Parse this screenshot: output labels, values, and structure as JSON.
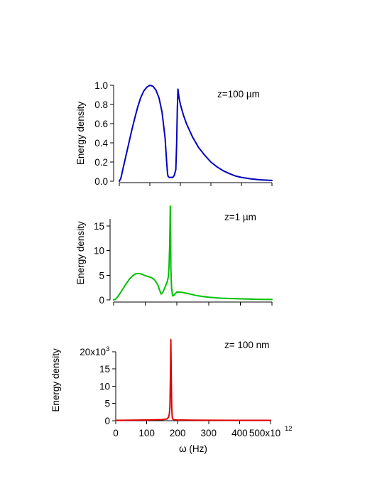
{
  "chart_data": [
    {
      "type": "line",
      "annotation": "z=100 µm",
      "ylabel": "Energy density",
      "xlabel": "",
      "xlim": [
        0,
        500
      ],
      "ylim": [
        0,
        1.0
      ],
      "yticks": [
        0.0,
        0.2,
        0.4,
        0.6,
        0.8,
        1.0
      ],
      "ytick_labels": [
        "0.0",
        "0.2",
        "0.4",
        "0.6",
        "0.8",
        "1.0"
      ],
      "xticks": [
        0,
        100,
        200,
        300,
        400,
        500
      ],
      "xtick_labels": [],
      "series": [
        {
          "color": "#0000c0",
          "x": [
            0,
            5,
            10,
            20,
            30,
            40,
            50,
            60,
            70,
            80,
            90,
            100,
            110,
            120,
            130,
            140,
            150,
            155,
            158,
            160,
            163,
            166,
            170,
            175,
            180,
            185,
            188,
            190,
            192,
            195,
            200,
            210,
            220,
            240,
            260,
            280,
            300,
            320,
            340,
            360,
            380,
            400,
            430,
            460,
            500
          ],
          "y": [
            0.0,
            0.03,
            0.1,
            0.24,
            0.38,
            0.52,
            0.65,
            0.77,
            0.87,
            0.94,
            0.98,
            1.0,
            0.99,
            0.95,
            0.87,
            0.72,
            0.45,
            0.2,
            0.08,
            0.05,
            0.04,
            0.04,
            0.04,
            0.04,
            0.06,
            0.12,
            0.4,
            0.75,
            0.96,
            0.88,
            0.8,
            0.69,
            0.6,
            0.46,
            0.35,
            0.27,
            0.2,
            0.15,
            0.11,
            0.08,
            0.055,
            0.04,
            0.025,
            0.015,
            0.008
          ]
        }
      ]
    },
    {
      "type": "line",
      "annotation": "z=1 µm",
      "ylabel": "Energy density",
      "xlabel": "",
      "xlim": [
        0,
        500
      ],
      "ylim": [
        0,
        19
      ],
      "yticks": [
        0,
        5,
        10,
        15
      ],
      "ytick_labels": [
        "0",
        "5",
        "10",
        "15"
      ],
      "xticks": [
        0,
        100,
        200,
        300,
        400,
        500
      ],
      "xtick_labels": [],
      "series": [
        {
          "color": "#00c000",
          "x": [
            0,
            5,
            10,
            20,
            30,
            40,
            50,
            60,
            70,
            80,
            90,
            100,
            110,
            120,
            130,
            140,
            145,
            150,
            155,
            160,
            165,
            170,
            173,
            175,
            177,
            178,
            179,
            180,
            181,
            183,
            186,
            190,
            195,
            200,
            220,
            240,
            260,
            280,
            300,
            340,
            380,
            420,
            460,
            500
          ],
          "y": [
            0.0,
            0.1,
            0.4,
            1.3,
            2.3,
            3.3,
            4.2,
            4.9,
            5.3,
            5.35,
            5.2,
            4.9,
            4.7,
            4.5,
            4.0,
            3.0,
            2.0,
            1.2,
            1.5,
            2.2,
            3.0,
            3.8,
            4.8,
            7.0,
            11.0,
            15.0,
            19.0,
            13.0,
            6.0,
            2.5,
            0.8,
            0.9,
            1.3,
            1.6,
            1.5,
            1.2,
            0.9,
            0.7,
            0.55,
            0.35,
            0.25,
            0.18,
            0.12,
            0.08
          ]
        }
      ]
    },
    {
      "type": "line",
      "annotation": "z= 100 nm",
      "ylabel": "Energy density",
      "xlabel": "ω (Hz)",
      "xlim": [
        0,
        500
      ],
      "ylim": [
        0,
        23500
      ],
      "yticks": [
        0,
        5000,
        10000,
        15000,
        20000
      ],
      "ytick_labels": [
        "0",
        "5",
        "10",
        "15",
        "20x10"
      ],
      "ytick_label_exponent": "3",
      "xticks": [
        0,
        100,
        200,
        300,
        400,
        500
      ],
      "xtick_labels": [
        "0",
        "100",
        "200",
        "300",
        "400",
        "500x10"
      ],
      "xtick_label_exponent": "12",
      "series": [
        {
          "color": "#e00000",
          "x": [
            0,
            50,
            100,
            150,
            165,
            170,
            173,
            175,
            176,
            177,
            178,
            179,
            180,
            181,
            182,
            183,
            185,
            190,
            200,
            250,
            300,
            400,
            500
          ],
          "y": [
            100,
            150,
            200,
            300,
            500,
            900,
            1800,
            4000,
            9000,
            16000,
            23500,
            16000,
            8000,
            3500,
            1500,
            700,
            400,
            250,
            200,
            150,
            120,
            100,
            100
          ]
        }
      ]
    }
  ]
}
